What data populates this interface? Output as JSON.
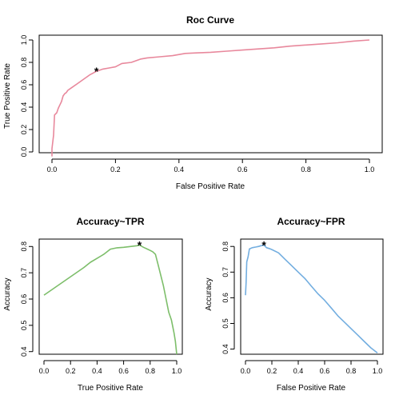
{
  "chart_data": [
    {
      "id": "roc",
      "type": "line",
      "title": "Roc Curve",
      "xlabel": "False Positive Rate",
      "ylabel": "True Positive Rate",
      "xlim": [
        0,
        1
      ],
      "ylim": [
        0,
        1
      ],
      "xticks": [
        "0.0",
        "0.2",
        "0.4",
        "0.6",
        "0.8",
        "1.0"
      ],
      "yticks": [
        "0.0",
        "0.2",
        "0.4",
        "0.6",
        "0.8",
        "1.0"
      ],
      "color": "#E8889C",
      "marker": {
        "x": 0.14,
        "y": 0.72,
        "symbol": "*"
      },
      "series": [
        {
          "x": [
            0.0,
            0.0,
            0.005,
            0.008,
            0.015,
            0.02,
            0.025,
            0.03,
            0.035,
            0.04,
            0.045,
            0.05,
            0.06,
            0.08,
            0.1,
            0.12,
            0.14,
            0.16,
            0.18,
            0.2,
            0.22,
            0.25,
            0.28,
            0.3,
            0.34,
            0.38,
            0.42,
            0.46,
            0.5,
            0.55,
            0.6,
            0.65,
            0.7,
            0.75,
            0.8,
            0.85,
            0.9,
            0.95,
            1.0
          ],
          "y": [
            -0.04,
            0.03,
            0.15,
            0.33,
            0.35,
            0.39,
            0.42,
            0.45,
            0.5,
            0.52,
            0.53,
            0.55,
            0.57,
            0.61,
            0.65,
            0.69,
            0.72,
            0.74,
            0.75,
            0.76,
            0.79,
            0.8,
            0.83,
            0.84,
            0.85,
            0.86,
            0.88,
            0.885,
            0.89,
            0.9,
            0.91,
            0.92,
            0.93,
            0.945,
            0.955,
            0.965,
            0.975,
            0.99,
            1.0
          ]
        }
      ]
    },
    {
      "id": "acc-tpr",
      "type": "line",
      "title": "Accuracy~TPR",
      "xlabel": "True Positive Rate",
      "ylabel": "Accuracy",
      "xlim": [
        0,
        1
      ],
      "ylim": [
        0.39,
        0.81
      ],
      "xticks": [
        "0.0",
        "0.2",
        "0.4",
        "0.6",
        "0.8",
        "1.0"
      ],
      "yticks": [
        "0.4",
        "0.5",
        "0.6",
        "0.7",
        "0.8"
      ],
      "color": "#7DBE6A",
      "marker": {
        "x": 0.72,
        "y": 0.805,
        "symbol": "*"
      },
      "series": [
        {
          "x": [
            0.0,
            0.1,
            0.2,
            0.3,
            0.35,
            0.4,
            0.45,
            0.5,
            0.55,
            0.6,
            0.65,
            0.7,
            0.72,
            0.75,
            0.78,
            0.8,
            0.82,
            0.84,
            0.86,
            0.88,
            0.9,
            0.92,
            0.94,
            0.96,
            0.98,
            0.99,
            1.0
          ],
          "y": [
            0.615,
            0.65,
            0.685,
            0.72,
            0.74,
            0.755,
            0.77,
            0.79,
            0.795,
            0.797,
            0.8,
            0.803,
            0.805,
            0.797,
            0.79,
            0.785,
            0.78,
            0.77,
            0.73,
            0.69,
            0.65,
            0.6,
            0.55,
            0.52,
            0.47,
            0.44,
            0.39
          ]
        }
      ]
    },
    {
      "id": "acc-fpr",
      "type": "line",
      "title": "Accuracy~FPR",
      "xlabel": "False Positive Rate",
      "ylabel": "Accuracy",
      "xlim": [
        0,
        1
      ],
      "ylim": [
        0.38,
        0.81
      ],
      "xticks": [
        "0.0",
        "0.2",
        "0.4",
        "0.6",
        "0.8",
        "1.0"
      ],
      "yticks": [
        "0.4",
        "0.5",
        "0.6",
        "0.7",
        "0.8"
      ],
      "color": "#73AEE0",
      "marker": {
        "x": 0.14,
        "y": 0.805,
        "symbol": "*"
      },
      "series": [
        {
          "x": [
            0.0,
            0.005,
            0.01,
            0.02,
            0.03,
            0.05,
            0.08,
            0.1,
            0.12,
            0.14,
            0.16,
            0.18,
            0.2,
            0.25,
            0.3,
            0.35,
            0.4,
            0.45,
            0.5,
            0.55,
            0.6,
            0.65,
            0.7,
            0.75,
            0.8,
            0.85,
            0.9,
            0.95,
            1.0
          ],
          "y": [
            0.61,
            0.66,
            0.74,
            0.76,
            0.79,
            0.795,
            0.798,
            0.8,
            0.803,
            0.805,
            0.795,
            0.792,
            0.788,
            0.775,
            0.75,
            0.725,
            0.7,
            0.675,
            0.645,
            0.615,
            0.59,
            0.56,
            0.53,
            0.505,
            0.48,
            0.455,
            0.43,
            0.405,
            0.385
          ]
        }
      ]
    }
  ]
}
